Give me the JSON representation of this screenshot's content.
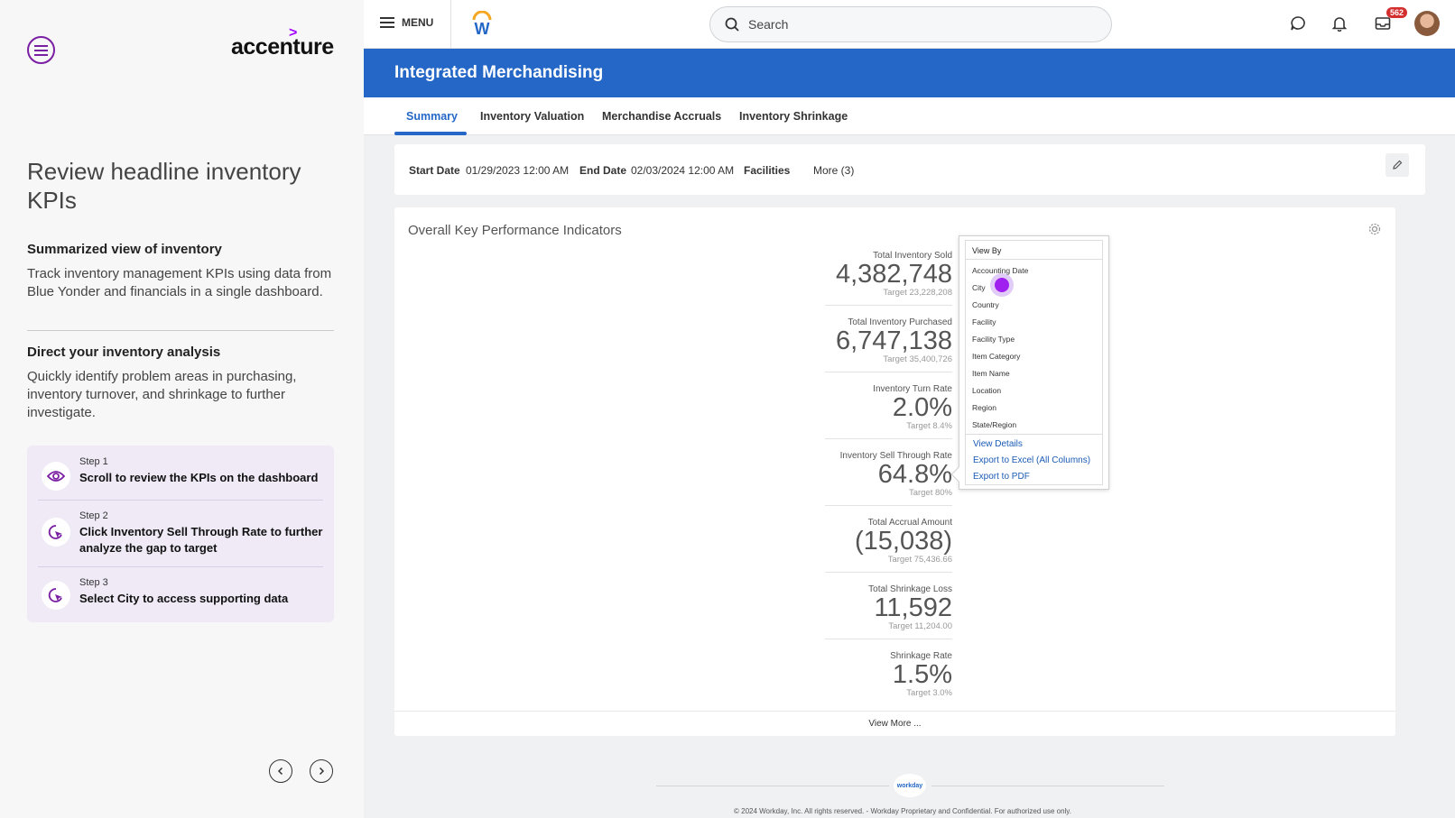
{
  "left_panel": {
    "logo": "accenture",
    "heading": "Review headline inventory KPIs",
    "section1": {
      "title": "Summarized view of inventory",
      "text": "Track inventory management KPIs using data from Blue Yonder and financials in a single dashboard."
    },
    "section2": {
      "title": "Direct your inventory analysis",
      "text": "Quickly identify problem areas in purchasing, inventory turnover, and shrinkage to further investigate."
    },
    "steps": [
      {
        "num": "Step 1",
        "text": "Scroll to review the KPIs on the dashboard",
        "icon": "eye-icon"
      },
      {
        "num": "Step 2",
        "text": "Click Inventory Sell Through Rate to further analyze the gap to target",
        "icon": "click-icon"
      },
      {
        "num": "Step 3",
        "text": "Select City to access supporting data",
        "icon": "click-icon"
      }
    ],
    "accent_color": "#a100ff"
  },
  "topbar": {
    "menu_label": "MENU",
    "search_placeholder": "Search",
    "inbox_badge": "562"
  },
  "page": {
    "title": "Integrated Merchandising",
    "header_color": "#2467c7"
  },
  "tabs": [
    {
      "label": "Summary",
      "active": true
    },
    {
      "label": "Inventory Valuation",
      "active": false
    },
    {
      "label": "Merchandise Accruals",
      "active": false
    },
    {
      "label": "Inventory Shrinkage",
      "active": false
    }
  ],
  "filters": {
    "start_label": "Start Date",
    "start_value": "01/29/2023 12:00 AM",
    "end_label": "End Date",
    "end_value": "02/03/2024 12:00 AM",
    "facilities_label": "Facilities",
    "more_label": "More (3)"
  },
  "kpi_card": {
    "title": "Overall Key Performance Indicators",
    "kpis": [
      {
        "label": "Total Inventory Sold",
        "value": "4,382,748",
        "target": "Target  23,228,208"
      },
      {
        "label": "Total Inventory Purchased",
        "value": "6,747,138",
        "target": "Target  35,400,726"
      },
      {
        "label": "Inventory Turn Rate",
        "value": "2.0%",
        "target": "Target  8.4%"
      },
      {
        "label": "Inventory Sell Through Rate",
        "value": "64.8%",
        "target": "Target  80%"
      },
      {
        "label": "Total Accrual Amount",
        "value": "(15,038)",
        "target": "Target  75,436.66"
      },
      {
        "label": "Total Shrinkage Loss",
        "value": "11,592",
        "target": "Target  11,204.00"
      },
      {
        "label": "Shrinkage Rate",
        "value": "1.5%",
        "target": "Target  3.0%"
      }
    ],
    "view_more": "View More ..."
  },
  "popup": {
    "header": "View By",
    "options": [
      "Accounting Date",
      "City",
      "Country",
      "Facility",
      "Facility Type",
      "Item Category",
      "Item Name",
      "Location",
      "Region",
      "State/Region"
    ],
    "links": [
      "View Details",
      "Export to Excel (All Columns)",
      "Export to PDF"
    ]
  },
  "footer": {
    "logo_text": "workday",
    "copyright": "© 2024 Workday, Inc. All rights reserved. - Workday Proprietary and Confidential. For authorized use only."
  }
}
